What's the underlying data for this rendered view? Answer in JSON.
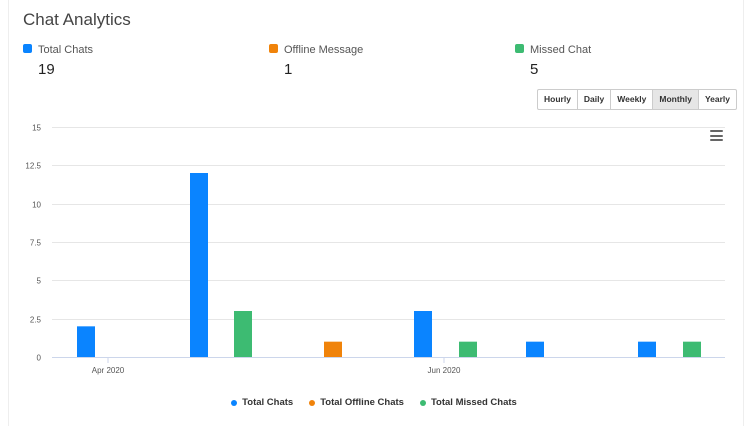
{
  "header": {
    "title": "Chat Analytics"
  },
  "stats": [
    {
      "label": "Total Chats",
      "value": "19",
      "color": "#0a84ff"
    },
    {
      "label": "Offline Message",
      "value": "1",
      "color": "#f0830a"
    },
    {
      "label": "Missed Chat",
      "value": "5",
      "color": "#3dbb72"
    }
  ],
  "range_buttons": [
    {
      "label": "Hourly",
      "active": false
    },
    {
      "label": "Daily",
      "active": false
    },
    {
      "label": "Weekly",
      "active": false
    },
    {
      "label": "Monthly",
      "active": true
    },
    {
      "label": "Yearly",
      "active": false
    }
  ],
  "menu_icon": "hamburger-menu-icon",
  "chart_data": {
    "type": "bar",
    "y_ticks": [
      "0",
      "2.5",
      "5",
      "7.5",
      "10",
      "12.5",
      "15"
    ],
    "ylim": [
      0,
      15
    ],
    "grid": true,
    "x_tick_labels": [
      {
        "label": "Apr 2020",
        "x": 0
      },
      {
        "label": "Jun 2020",
        "x": 2
      }
    ],
    "group_starts": [
      0,
      1,
      2,
      3,
      4
    ],
    "series": [
      {
        "name": "Total Chats",
        "color": "#0a84ff",
        "values": [
          2,
          12,
          3,
          1,
          1
        ]
      },
      {
        "name": "Total Offline Chats",
        "color": "#f0830a",
        "values": [
          0,
          1,
          0,
          0,
          0
        ]
      },
      {
        "name": "Total Missed Chats",
        "color": "#3dbb72",
        "values": [
          0,
          3,
          1,
          0,
          1
        ]
      }
    ],
    "legend_position": "bottom-center"
  }
}
